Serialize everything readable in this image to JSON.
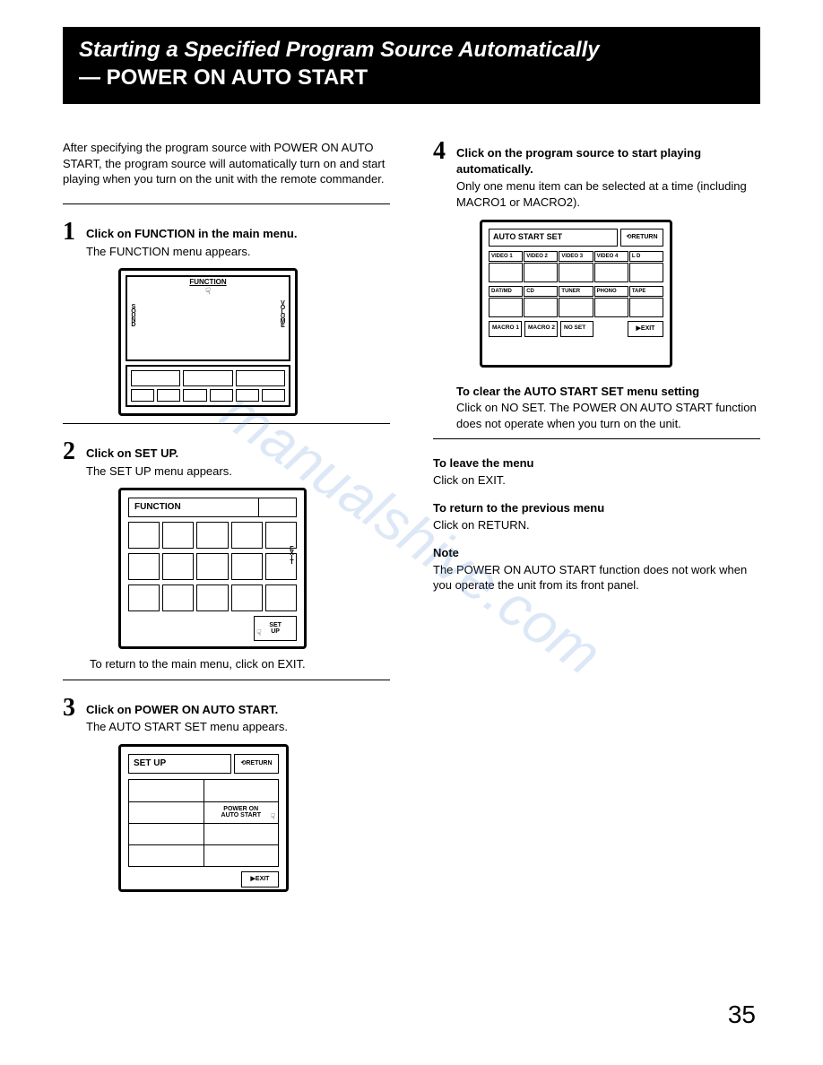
{
  "header": {
    "title": "Starting a Specified Program Source Automatically",
    "subtitle": "— POWER ON AUTO START"
  },
  "intro": "After specifying the program source with POWER ON AUTO START, the program source will automatically turn on and start playing when you turn on the unit with the remote commander.",
  "step1": {
    "num": "1",
    "title": "Click on FUNCTION in the main menu.",
    "desc": "The FUNCTION menu appears.",
    "fig": {
      "top": "FUNCTION",
      "left": "SOUND",
      "right": "VOLUME"
    }
  },
  "step2": {
    "num": "2",
    "title": "Click on SET UP.",
    "desc": "The SET UP menu appears.",
    "fig": {
      "header": "FUNCTION",
      "side": "EXIT",
      "setup": "SET\nUP"
    },
    "caption": "To return to the main menu, click on EXIT."
  },
  "step3": {
    "num": "3",
    "title": "Click on POWER ON AUTO START.",
    "desc": "The AUTO START SET menu appears.",
    "fig": {
      "header": "SET UP",
      "return": "⟲RETURN",
      "powerOn": "POWER ON\nAUTO START",
      "exit": "▶EXIT"
    }
  },
  "step4": {
    "num": "4",
    "title": "Click on the program source to start playing automatically.",
    "desc": "Only one menu item can be selected at a time (including MACRO1 or MACRO2).",
    "fig": {
      "header": "AUTO START SET",
      "return": "⟲RETURN",
      "row1": [
        "VIDEO 1",
        "VIDEO 2",
        "VIDEO 3",
        "VIDEO 4",
        "L D"
      ],
      "row2": [
        "DAT/MD",
        "CD",
        "TUNER",
        "PHONO",
        "TAPE"
      ],
      "macro1": "MACRO 1",
      "macro2": "MACRO 2",
      "noset": "NO SET",
      "exit": "▶EXIT"
    },
    "clearHead": "To clear the AUTO START SET menu setting",
    "clearBody": "Click on NO SET. The POWER ON AUTO START function does not operate when you turn on the unit."
  },
  "leave": {
    "head": "To leave the menu",
    "body": "Click on EXIT."
  },
  "return": {
    "head": "To return to the previous menu",
    "body": "Click on RETURN."
  },
  "note": {
    "head": "Note",
    "body": "The POWER ON AUTO START function does not work when you operate the unit from its front panel."
  },
  "pageNumber": "35",
  "watermark": "manualshive.com"
}
